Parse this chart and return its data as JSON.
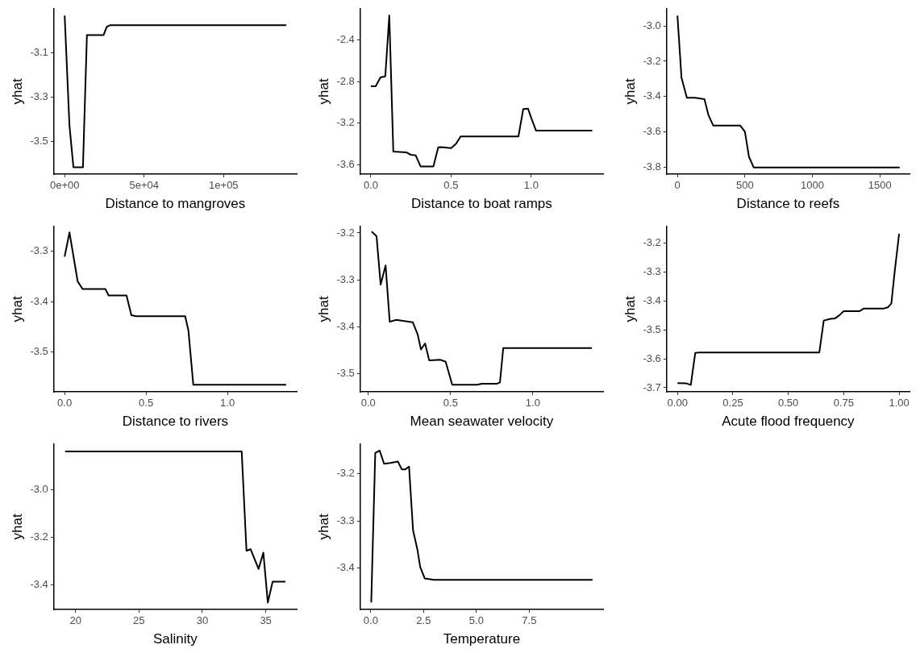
{
  "chart_data": [
    {
      "type": "line",
      "xlabel": "Distance to mangroves",
      "ylabel": "yhat",
      "grid": false,
      "legend": false,
      "marker": "none",
      "xlim": [
        -6800,
        146000
      ],
      "ylim": [
        -3.645,
        -2.904
      ],
      "xticks": [
        {
          "value": 0,
          "label": "0e+00"
        },
        {
          "value": 50000,
          "label": "5e+04"
        },
        {
          "value": 100000,
          "label": "1e+05"
        }
      ],
      "yticks": [
        -3.5,
        -3.3,
        -3.1
      ],
      "series": [
        {
          "color": "#000000",
          "x": [
            0,
            3000,
            5500,
            11500,
            14000,
            24500,
            26500,
            28500,
            139500
          ],
          "values": [
            -2.935,
            -3.425,
            -3.614,
            -3.614,
            -3.022,
            -3.022,
            -2.985,
            -2.978,
            -2.978
          ]
        }
      ]
    },
    {
      "type": "line",
      "xlabel": "Distance to boat ramps",
      "ylabel": "yhat",
      "grid": false,
      "legend": false,
      "marker": "none",
      "xlim": [
        -0.066,
        1.448
      ],
      "ylim": [
        -3.69,
        -2.099
      ],
      "xticks": [
        {
          "value": 0,
          "label": "0.0"
        },
        0.5,
        {
          "value": 1,
          "label": "1.0"
        }
      ],
      "yticks": [
        -3.6,
        -3.2,
        -2.8,
        -2.4
      ],
      "series": [
        {
          "color": "#000000",
          "x": [
            0,
            0.03,
            0.06,
            0.09,
            0.115,
            0.14,
            0.22,
            0.25,
            0.28,
            0.31,
            0.39,
            0.42,
            0.44,
            0.5,
            0.53,
            0.56,
            0.92,
            0.95,
            0.98,
            1.0,
            1.03,
            1.38
          ],
          "values": [
            -2.845,
            -2.845,
            -2.76,
            -2.75,
            -2.165,
            -3.472,
            -3.48,
            -3.504,
            -3.51,
            -3.616,
            -3.616,
            -3.432,
            -3.43,
            -3.44,
            -3.4,
            -3.328,
            -3.328,
            -3.064,
            -3.06,
            -3.15,
            -3.272,
            -3.272
          ]
        }
      ]
    },
    {
      "type": "line",
      "xlabel": "Distance to reefs",
      "ylabel": "yhat",
      "grid": false,
      "legend": false,
      "marker": "none",
      "xlim": [
        -80,
        1720
      ],
      "ylim": [
        -3.838,
        -2.903
      ],
      "xticks": [
        0,
        500,
        1000,
        1500
      ],
      "yticks": [
        -3.8,
        -3.6,
        -3.4,
        -3.2,
        {
          "value": -3,
          "label": "-3.0"
        }
      ],
      "series": [
        {
          "color": "#000000",
          "x": [
            0,
            30,
            70,
            130,
            200,
            230,
            265,
            465,
            500,
            530,
            565,
            1647
          ],
          "values": [
            -2.942,
            -3.294,
            -3.406,
            -3.406,
            -3.414,
            -3.505,
            -3.563,
            -3.563,
            -3.598,
            -3.74,
            -3.8,
            -3.8
          ]
        }
      ]
    },
    {
      "type": "line",
      "xlabel": "Distance to rivers",
      "ylabel": "yhat",
      "grid": false,
      "legend": false,
      "marker": "none",
      "xlim": [
        -0.066,
        1.425
      ],
      "ylim": [
        -3.579,
        -3.251
      ],
      "xticks": [
        {
          "value": 0,
          "label": "0.0"
        },
        0.5,
        {
          "value": 1,
          "label": "1.0"
        }
      ],
      "yticks": [
        -3.5,
        -3.4,
        -3.3
      ],
      "series": [
        {
          "color": "#000000",
          "x": [
            0,
            0.03,
            0.08,
            0.11,
            0.25,
            0.27,
            0.38,
            0.41,
            0.44,
            0.74,
            0.76,
            0.79,
            1.36
          ],
          "values": [
            -3.311,
            -3.263,
            -3.36,
            -3.375,
            -3.375,
            -3.388,
            -3.388,
            -3.427,
            -3.429,
            -3.429,
            -3.457,
            -3.565,
            -3.565
          ]
        }
      ]
    },
    {
      "type": "line",
      "xlabel": "Mean seawater velocity",
      "ylabel": "yhat",
      "grid": false,
      "legend": false,
      "marker": "none",
      "xlim": [
        -0.049,
        1.427
      ],
      "ylim": [
        -3.538,
        -3.186
      ],
      "xticks": [
        {
          "value": 0,
          "label": "0.0"
        },
        0.5,
        {
          "value": 1,
          "label": "1.0"
        }
      ],
      "yticks": [
        -3.5,
        -3.4,
        -3.3,
        -3.2
      ],
      "series": [
        {
          "color": "#000000",
          "x": [
            0.02,
            0.05,
            0.075,
            0.105,
            0.13,
            0.17,
            0.27,
            0.3,
            0.32,
            0.345,
            0.37,
            0.44,
            0.47,
            0.51,
            0.66,
            0.69,
            0.78,
            0.8,
            0.82,
            1.359
          ],
          "values": [
            -3.197,
            -3.207,
            -3.31,
            -3.269,
            -3.389,
            -3.385,
            -3.39,
            -3.416,
            -3.448,
            -3.435,
            -3.471,
            -3.47,
            -3.474,
            -3.523,
            -3.523,
            -3.521,
            -3.521,
            -3.518,
            -3.445,
            -3.445
          ]
        }
      ]
    },
    {
      "type": "line",
      "xlabel": "Acute flood frequency",
      "ylabel": "yhat",
      "grid": false,
      "legend": false,
      "marker": "none",
      "xlim": [
        -0.049,
        1.047
      ],
      "ylim": [
        -3.714,
        -3.143
      ],
      "xticks": [
        {
          "value": 0,
          "label": "0.00"
        },
        0.25,
        {
          "value": 0.5,
          "label": "0.50"
        },
        0.75,
        {
          "value": 1,
          "label": "1.00"
        }
      ],
      "yticks": [
        -3.7,
        -3.6,
        -3.5,
        -3.4,
        -3.3,
        -3.2
      ],
      "series": [
        {
          "color": "#000000",
          "x": [
            0,
            0.04,
            0.06,
            0.08,
            0.1,
            0.64,
            0.66,
            0.69,
            0.71,
            0.73,
            0.75,
            0.78,
            0.82,
            0.84,
            0.93,
            0.95,
            0.965,
            0.98,
            1.0
          ],
          "values": [
            -3.684,
            -3.685,
            -3.69,
            -3.58,
            -3.578,
            -3.578,
            -3.468,
            -3.462,
            -3.461,
            -3.45,
            -3.436,
            -3.436,
            -3.436,
            -3.427,
            -3.427,
            -3.422,
            -3.409,
            -3.3,
            -3.168
          ]
        }
      ]
    },
    {
      "type": "line",
      "xlabel": "Salinity",
      "ylabel": "yhat",
      "grid": false,
      "legend": false,
      "marker": "none",
      "xlim": [
        18.29,
        37.44
      ],
      "ylim": [
        -3.505,
        -2.808
      ],
      "xticks": [
        20,
        25,
        30,
        35
      ],
      "yticks": [
        -3.4,
        -3.2,
        {
          "value": -3,
          "label": "-3.0"
        }
      ],
      "series": [
        {
          "color": "#000000",
          "x": [
            19.18,
            33.1,
            33.48,
            33.8,
            34.43,
            34.81,
            35.16,
            35.54,
            36.55
          ],
          "values": [
            -2.839,
            -2.839,
            -3.258,
            -3.251,
            -3.334,
            -3.266,
            -3.476,
            -3.388,
            -3.388
          ]
        }
      ]
    },
    {
      "type": "line",
      "xlabel": "Temperature",
      "ylabel": "yhat",
      "grid": false,
      "legend": false,
      "marker": "none",
      "xlim": [
        -0.5,
        11.0
      ],
      "ylim": [
        -3.488,
        -3.137
      ],
      "xticks": [
        {
          "value": 0,
          "label": "0.0"
        },
        2.5,
        {
          "value": 5,
          "label": "5.0"
        },
        7.5
      ],
      "yticks": [
        -3.4,
        -3.3,
        -3.2
      ],
      "series": [
        {
          "color": "#000000",
          "x": [
            0.02,
            0.21,
            0.42,
            0.63,
            0.93,
            1.28,
            1.47,
            1.62,
            1.81,
            2.0,
            2.21,
            2.34,
            2.55,
            2.99,
            10.5
          ],
          "values": [
            -3.473,
            -3.156,
            -3.151,
            -3.179,
            -3.177,
            -3.174,
            -3.191,
            -3.191,
            -3.185,
            -3.32,
            -3.362,
            -3.398,
            -3.422,
            -3.425,
            -3.425
          ]
        }
      ]
    }
  ]
}
